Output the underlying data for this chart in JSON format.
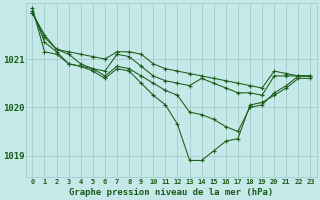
{
  "title": "Graphe pression niveau de la mer (hPa)",
  "bg_color": "#c5e8e8",
  "line_color": "#1a5c1a",
  "grid_color_major": "#9dc8c8",
  "grid_color_minor": "#b8dcdc",
  "x_ticks": [
    0,
    1,
    2,
    3,
    4,
    5,
    6,
    7,
    8,
    9,
    10,
    11,
    12,
    13,
    14,
    15,
    16,
    17,
    18,
    19,
    20,
    21,
    22,
    23
  ],
  "ylim": [
    1018.55,
    1022.15
  ],
  "yticks": [
    1019,
    1020,
    1021
  ],
  "series": [
    [
      1021.95,
      1021.5,
      1021.2,
      1021.15,
      1021.1,
      1021.05,
      1021.0,
      1021.15,
      1021.15,
      1021.1,
      1020.9,
      1020.8,
      1020.75,
      1020.7,
      1020.65,
      1020.6,
      1020.55,
      1020.5,
      1020.45,
      1020.4,
      1020.75,
      1020.7,
      1020.65,
      1020.65
    ],
    [
      1021.95,
      1021.45,
      1021.2,
      1021.1,
      1020.9,
      1020.8,
      1020.75,
      1021.1,
      1021.05,
      1020.85,
      1020.65,
      1020.55,
      1020.5,
      1020.45,
      1020.6,
      1020.5,
      1020.4,
      1020.3,
      1020.3,
      1020.25,
      1020.65,
      1020.65,
      1020.65,
      1020.65
    ],
    [
      1022.0,
      1021.35,
      1021.15,
      1020.9,
      1020.85,
      1020.8,
      1020.65,
      1020.85,
      1020.8,
      1020.65,
      1020.5,
      1020.35,
      1020.25,
      1019.9,
      1019.85,
      1019.75,
      1019.6,
      1019.5,
      1020.0,
      1020.05,
      1020.3,
      1020.45,
      1020.65,
      1020.65
    ],
    [
      1022.05,
      1021.15,
      1021.1,
      1020.9,
      1020.85,
      1020.75,
      1020.6,
      1020.8,
      1020.75,
      1020.5,
      1020.25,
      1020.05,
      1019.65,
      1018.9,
      1018.9,
      1019.1,
      1019.3,
      1019.35,
      1020.05,
      1020.1,
      1020.25,
      1020.4,
      1020.6,
      1020.6
    ]
  ]
}
